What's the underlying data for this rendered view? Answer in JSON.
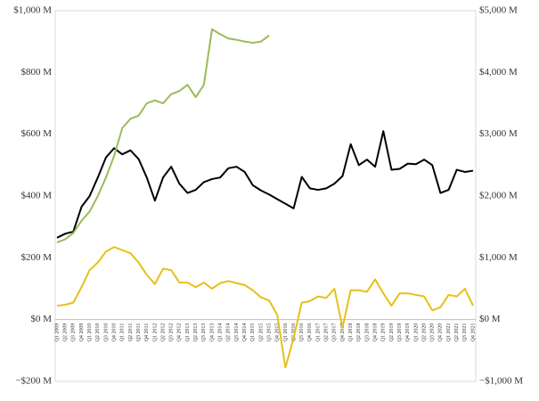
{
  "chart_data": {
    "type": "line",
    "categories": [
      "Q1 2009",
      "Q2 2009",
      "Q3 2009",
      "Q4 2009",
      "Q1 2010",
      "Q2 2010",
      "Q3 2010",
      "Q4 2010",
      "Q1 2011",
      "Q2 2011",
      "Q3 2011",
      "Q4 2011",
      "Q1 2012",
      "Q2 2012",
      "Q3 2012",
      "Q4 2012",
      "Q1 2013",
      "Q2 2013",
      "Q3 2013",
      "Q4 2013",
      "Q1 2014",
      "Q2 2014",
      "Q3 2014",
      "Q4 2014",
      "Q1 2015",
      "Q2 2015",
      "Q3 2015",
      "Q4 2015",
      "Q1 2016",
      "Q2 2016",
      "Q3 2016",
      "Q4 2016",
      "Q1 2017",
      "Q2 2017",
      "Q3 2017",
      "Q4 2017",
      "Q1 2018",
      "Q2 2018",
      "Q3 2018",
      "Q4 2018",
      "Q1 2019",
      "Q2 2019",
      "Q3 2019",
      "Q4 2019",
      "Q1 2020",
      "Q2 2020",
      "Q3 2020",
      "Q4 2020",
      "Q1 2021",
      "Q2 2021",
      "Q3 2021",
      "Q4 2021"
    ],
    "series": [
      {
        "color": "#000000",
        "axis": "y",
        "values": [
          265,
          278,
          285,
          365,
          400,
          460,
          525,
          555,
          535,
          548,
          520,
          460,
          385,
          460,
          495,
          440,
          410,
          420,
          445,
          455,
          460,
          490,
          495,
          478,
          435,
          418,
          405,
          390,
          375,
          360,
          462,
          425,
          420,
          425,
          440,
          465,
          568,
          500,
          518,
          495,
          610,
          485,
          488,
          505,
          503,
          518,
          500,
          410,
          420,
          485,
          478,
          482
        ]
      },
      {
        "color": "#9bbb59",
        "axis": "y2",
        "values": [
          1250,
          1300,
          1400,
          1600,
          1750,
          2000,
          2300,
          2650,
          3100,
          3250,
          3300,
          3500,
          3550,
          3500,
          3650,
          3700,
          3800,
          3600,
          3800,
          4700,
          4620,
          4550,
          4530,
          4500,
          4480,
          4500,
          4600,
          null,
          null,
          null,
          null,
          null,
          null,
          null,
          null,
          null,
          null,
          null,
          null,
          null,
          null,
          null,
          null,
          null,
          null,
          null,
          null,
          null,
          null,
          null,
          null,
          null
        ]
      },
      {
        "color": "#e8bf1a",
        "axis": "y",
        "values": [
          45,
          48,
          55,
          105,
          160,
          185,
          220,
          235,
          225,
          215,
          185,
          145,
          115,
          165,
          160,
          120,
          120,
          105,
          120,
          100,
          118,
          125,
          118,
          112,
          95,
          72,
          62,
          15,
          -155,
          -60,
          55,
          60,
          75,
          70,
          100,
          -25,
          95,
          95,
          90,
          130,
          85,
          45,
          85,
          85,
          80,
          75,
          30,
          40,
          80,
          75,
          100,
          45
        ]
      }
    ],
    "ylim": [
      -200,
      1000
    ],
    "yticks": [
      {
        "value": -200,
        "label": "−$200 M"
      },
      {
        "value": 0,
        "label": "$0 M"
      },
      {
        "value": 200,
        "label": "$200 M"
      },
      {
        "value": 400,
        "label": "$400 M"
      },
      {
        "value": 600,
        "label": "$600 M"
      },
      {
        "value": 800,
        "label": "$800 M"
      },
      {
        "value": 1000,
        "label": "$1,000 M"
      }
    ],
    "y2lim": [
      -1000,
      5000
    ],
    "y2ticks": [
      {
        "value": -1000,
        "label": "−$1,000 M"
      },
      {
        "value": 0,
        "label": "$0 M"
      },
      {
        "value": 1000,
        "label": "$1,000 M"
      },
      {
        "value": 2000,
        "label": "$2,000 M"
      },
      {
        "value": 3000,
        "label": "$3,000 M"
      },
      {
        "value": 4000,
        "label": "$4,000 M"
      },
      {
        "value": 5000,
        "label": "$5,000 M"
      }
    ]
  }
}
